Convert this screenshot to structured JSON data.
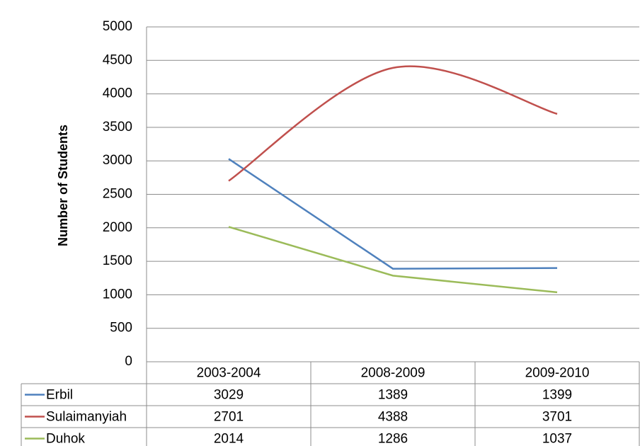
{
  "chart_data": {
    "type": "line",
    "y_label": "Number of Students",
    "categories": [
      "2003-2004",
      "2008-2009",
      "2009-2010"
    ],
    "series": [
      {
        "name": "Erbil",
        "color": "#4f81bd",
        "values": [
          3029,
          1389,
          1399
        ]
      },
      {
        "name": "Sulaimanyiah",
        "color": "#c0504d",
        "values": [
          2701,
          4388,
          3701
        ],
        "smooth": true
      },
      {
        "name": "Duhok",
        "color": "#9bbb59",
        "values": [
          2014,
          1286,
          1037
        ]
      }
    ],
    "ylim": [
      0,
      5000
    ],
    "yticks": [
      0,
      500,
      1000,
      1500,
      2000,
      2500,
      3000,
      3500,
      4000,
      4500,
      5000
    ],
    "grid": true,
    "data_table": true
  }
}
